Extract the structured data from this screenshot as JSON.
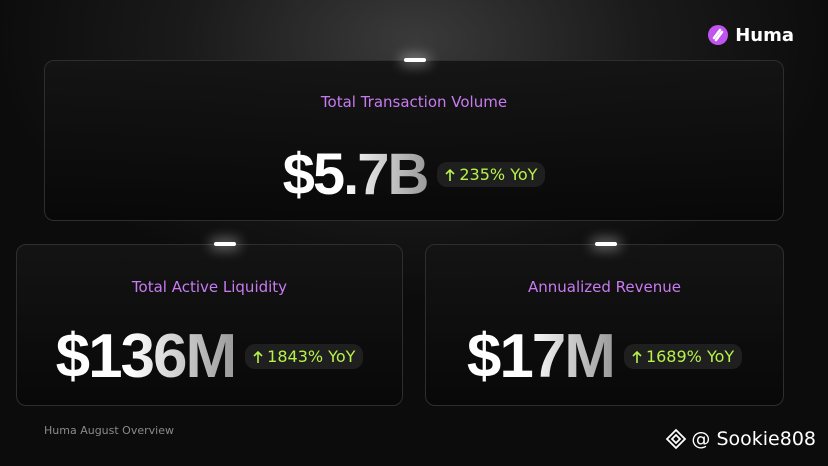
{
  "brand": "Huma",
  "cards": [
    {
      "label": "Total Transaction Volume",
      "value": "$5.7B",
      "change": "235% YoY"
    },
    {
      "label": "Total Active Liquidity",
      "value": "$136M",
      "change": "1843% YoY"
    },
    {
      "label": "Annualized Revenue",
      "value": "$17M",
      "change": "1689% YoY"
    }
  ],
  "footer": "Huma August Overview",
  "watermark": "@ Sookie808"
}
